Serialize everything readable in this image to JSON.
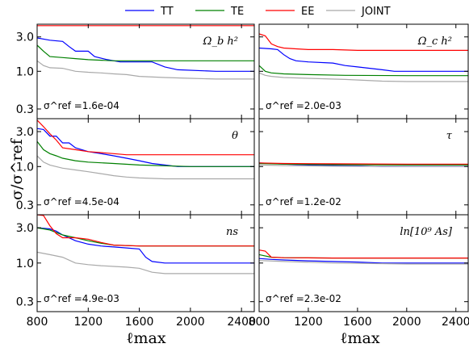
{
  "legend": [
    {
      "name": "TT",
      "color": "#0000ff"
    },
    {
      "name": "TE",
      "color": "#008000"
    },
    {
      "name": "EE",
      "color": "#ff0000"
    },
    {
      "name": "JOINT",
      "color": "#a9a9a9"
    }
  ],
  "axes": {
    "ylabel": "σ/σ^ref",
    "xlabel": "ℓmax",
    "x_ticks": [
      "800",
      "1200",
      "1600",
      "2000",
      "2400"
    ],
    "y_ticks": [
      "0.3",
      "1.0",
      "3.0"
    ]
  },
  "chart_data": [
    {
      "type": "line",
      "param": "Ω_b h²",
      "sigma_ref": "σ^ref =1.6e-04",
      "xlim": [
        800,
        2500
      ],
      "ylim": [
        0.22,
        4.5
      ],
      "yscale": "log",
      "series": [
        {
          "name": "TT",
          "x": [
            800,
            900,
            1000,
            1050,
            1100,
            1200,
            1250,
            1350,
            1450,
            1600,
            1700,
            1800,
            1900,
            2200,
            2500
          ],
          "y": [
            2.9,
            2.7,
            2.6,
            2.2,
            1.9,
            1.9,
            1.6,
            1.45,
            1.35,
            1.35,
            1.35,
            1.15,
            1.05,
            1.0,
            1.0
          ]
        },
        {
          "name": "TE",
          "x": [
            800,
            850,
            900,
            1000,
            1100,
            1200,
            1400,
            1600,
            2500
          ],
          "y": [
            2.3,
            1.9,
            1.6,
            1.55,
            1.5,
            1.45,
            1.4,
            1.4,
            1.4
          ]
        },
        {
          "name": "EE",
          "x": [
            800,
            2500
          ],
          "y": [
            4.3,
            4.3
          ]
        },
        {
          "name": "JOINT",
          "x": [
            800,
            850,
            900,
            1000,
            1100,
            1200,
            1300,
            1400,
            1500,
            1600,
            1800,
            2000,
            2200,
            2500
          ],
          "y": [
            1.4,
            1.2,
            1.12,
            1.1,
            1.0,
            0.97,
            0.95,
            0.92,
            0.9,
            0.85,
            0.82,
            0.8,
            0.78,
            0.78
          ]
        }
      ]
    },
    {
      "type": "line",
      "param": "Ω_c h²",
      "sigma_ref": "σ^ref =2.0e-03",
      "xlim": [
        800,
        2500
      ],
      "ylim": [
        0.22,
        4.5
      ],
      "yscale": "log",
      "series": [
        {
          "name": "TT",
          "x": [
            800,
            900,
            950,
            1000,
            1050,
            1100,
            1200,
            1400,
            1500,
            1600,
            1800,
            1900,
            2200,
            2500
          ],
          "y": [
            2.1,
            2.05,
            2.0,
            1.7,
            1.5,
            1.4,
            1.35,
            1.3,
            1.2,
            1.15,
            1.05,
            1.0,
            1.0,
            1.0
          ]
        },
        {
          "name": "TE",
          "x": [
            800,
            850,
            900,
            1000,
            1200,
            1500,
            2000,
            2500
          ],
          "y": [
            1.2,
            1.0,
            0.95,
            0.92,
            0.9,
            0.88,
            0.87,
            0.87
          ]
        },
        {
          "name": "EE",
          "x": [
            800,
            850,
            900,
            950,
            1000,
            1100,
            1200,
            1400,
            1600,
            1800,
            2000,
            2500
          ],
          "y": [
            3.3,
            3.1,
            2.4,
            2.2,
            2.1,
            2.05,
            2.0,
            2.0,
            1.95,
            1.95,
            1.95,
            1.95
          ]
        },
        {
          "name": "JOINT",
          "x": [
            800,
            850,
            900,
            1000,
            1200,
            1500,
            1800,
            2000,
            2500
          ],
          "y": [
            0.95,
            0.88,
            0.85,
            0.82,
            0.8,
            0.77,
            0.73,
            0.72,
            0.72
          ]
        }
      ]
    },
    {
      "type": "line",
      "param": "θ",
      "sigma_ref": "σ^ref =4.5e-04",
      "xlim": [
        800,
        2500
      ],
      "ylim": [
        0.22,
        4.5
      ],
      "yscale": "log",
      "series": [
        {
          "name": "TT",
          "x": [
            800,
            850,
            900,
            950,
            1000,
            1050,
            1100,
            1200,
            1300,
            1400,
            1500,
            1600,
            1700,
            1800,
            1900,
            2000,
            2500
          ],
          "y": [
            3.3,
            3.2,
            2.6,
            2.6,
            2.1,
            2.1,
            1.8,
            1.6,
            1.5,
            1.4,
            1.3,
            1.2,
            1.1,
            1.05,
            1.0,
            1.0,
            1.0
          ]
        },
        {
          "name": "TE",
          "x": [
            800,
            850,
            900,
            950,
            1000,
            1100,
            1200,
            1400,
            1600,
            2000,
            2500
          ],
          "y": [
            2.2,
            1.7,
            1.5,
            1.4,
            1.3,
            1.2,
            1.15,
            1.1,
            1.05,
            1.0,
            1.0
          ]
        },
        {
          "name": "EE",
          "x": [
            800,
            850,
            900,
            950,
            1000,
            1100,
            1200,
            1400,
            1500,
            1600,
            1800,
            2000,
            2500
          ],
          "y": [
            4.3,
            3.5,
            2.8,
            2.3,
            1.8,
            1.7,
            1.6,
            1.5,
            1.45,
            1.45,
            1.45,
            1.45,
            1.45
          ]
        },
        {
          "name": "JOINT",
          "x": [
            800,
            850,
            900,
            1000,
            1100,
            1200,
            1300,
            1400,
            1500,
            1600,
            1800,
            2000,
            2500
          ],
          "y": [
            1.4,
            1.15,
            1.05,
            0.95,
            0.9,
            0.85,
            0.8,
            0.75,
            0.72,
            0.7,
            0.68,
            0.68,
            0.68
          ]
        }
      ]
    },
    {
      "type": "line",
      "param": "τ",
      "sigma_ref": "σ^ref =1.2e-02",
      "xlim": [
        800,
        2500
      ],
      "ylim": [
        0.22,
        4.5
      ],
      "yscale": "log",
      "series": [
        {
          "name": "TT",
          "x": [
            800,
            900,
            1000,
            1200,
            1400,
            1600,
            1800,
            2000,
            2500
          ],
          "y": [
            1.12,
            1.1,
            1.08,
            1.05,
            1.03,
            1.02,
            1.0,
            1.0,
            1.0
          ]
        },
        {
          "name": "TE",
          "x": [
            800,
            1000,
            1400,
            2000,
            2500
          ],
          "y": [
            1.1,
            1.08,
            1.06,
            1.05,
            1.05
          ]
        },
        {
          "name": "EE",
          "x": [
            800,
            1000,
            1400,
            2000,
            2500
          ],
          "y": [
            1.12,
            1.1,
            1.09,
            1.08,
            1.08
          ]
        },
        {
          "name": "JOINT",
          "x": [
            800,
            1000,
            1400,
            2000,
            2500
          ],
          "y": [
            1.05,
            1.03,
            1.01,
            1.0,
            1.0
          ]
        }
      ]
    },
    {
      "type": "line",
      "param": "ns",
      "sigma_ref": "σ^ref =4.9e-03",
      "xlim": [
        800,
        2500
      ],
      "ylim": [
        0.22,
        4.5
      ],
      "yscale": "log",
      "series": [
        {
          "name": "TT",
          "x": [
            800,
            900,
            950,
            1000,
            1100,
            1200,
            1300,
            1400,
            1500,
            1600,
            1650,
            1700,
            1800,
            2000,
            2500
          ],
          "y": [
            3.0,
            2.9,
            2.7,
            2.4,
            2.0,
            1.8,
            1.7,
            1.65,
            1.6,
            1.55,
            1.2,
            1.05,
            1.0,
            1.0,
            1.0
          ]
        },
        {
          "name": "TE",
          "x": [
            800,
            900,
            1000,
            1100,
            1200,
            1300,
            1400,
            1600,
            2000,
            2500
          ],
          "y": [
            3.0,
            2.8,
            2.4,
            2.2,
            2.0,
            1.85,
            1.75,
            1.7,
            1.7,
            1.7
          ]
        },
        {
          "name": "EE",
          "x": [
            800,
            850,
            900,
            950,
            1000,
            1100,
            1200,
            1300,
            1400,
            1600,
            2000,
            2500
          ],
          "y": [
            4.5,
            4.4,
            3.2,
            2.5,
            2.2,
            2.2,
            2.1,
            1.9,
            1.75,
            1.7,
            1.7,
            1.7
          ]
        },
        {
          "name": "JOINT",
          "x": [
            800,
            900,
            1000,
            1100,
            1200,
            1300,
            1400,
            1500,
            1600,
            1700,
            1800,
            2000,
            2500
          ],
          "y": [
            1.4,
            1.3,
            1.2,
            1.0,
            0.95,
            0.92,
            0.9,
            0.88,
            0.85,
            0.75,
            0.72,
            0.72,
            0.72
          ]
        }
      ]
    },
    {
      "type": "line",
      "param": "ln[10⁹ As]",
      "sigma_ref": "σ^ref =2.3e-02",
      "xlim": [
        800,
        2500
      ],
      "ylim": [
        0.22,
        4.5
      ],
      "yscale": "log",
      "series": [
        {
          "name": "TT",
          "x": [
            800,
            900,
            1000,
            1200,
            1400,
            1600,
            1800,
            2000,
            2500
          ],
          "y": [
            1.15,
            1.12,
            1.1,
            1.07,
            1.05,
            1.03,
            1.0,
            1.0,
            1.0
          ]
        },
        {
          "name": "TE",
          "x": [
            800,
            900,
            1000,
            1400,
            2000,
            2500
          ],
          "y": [
            1.3,
            1.2,
            1.18,
            1.17,
            1.17,
            1.17
          ]
        },
        {
          "name": "EE",
          "x": [
            800,
            850,
            900,
            1000,
            1400,
            2000,
            2500
          ],
          "y": [
            1.5,
            1.45,
            1.2,
            1.18,
            1.17,
            1.17,
            1.17
          ]
        },
        {
          "name": "JOINT",
          "x": [
            800,
            1000,
            1400,
            2000,
            2500
          ],
          "y": [
            1.08,
            1.05,
            1.0,
            0.97,
            0.97
          ]
        }
      ]
    }
  ]
}
